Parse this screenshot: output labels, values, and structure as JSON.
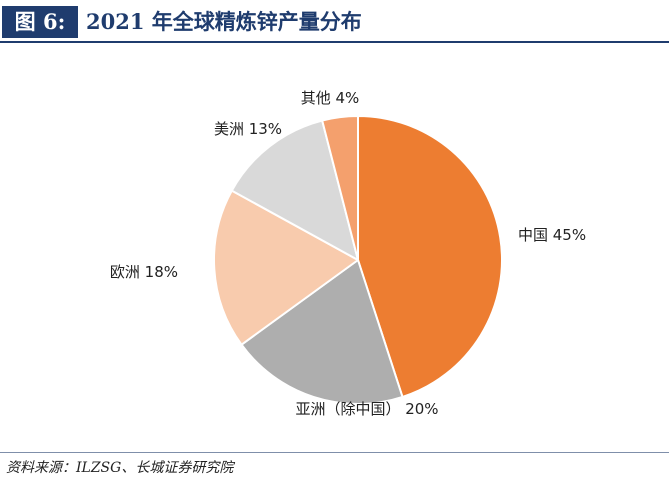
{
  "figure": {
    "label": "图 6:",
    "title": "2021 年全球精炼锌产量分布"
  },
  "source": "资料来源：ILZSG、长城证券研究院",
  "chart_data": {
    "type": "pie",
    "title": "2021 年全球精炼锌产量分布",
    "unit": "%",
    "slices": [
      {
        "name": "中国",
        "value": 45,
        "label": "中国 45%",
        "color": "#ed7d31"
      },
      {
        "name": "亚洲（除中国）",
        "value": 20,
        "label": "亚洲（除中国） 20%",
        "color": "#aeaeae"
      },
      {
        "name": "欧洲",
        "value": 18,
        "label": "欧洲 18%",
        "color": "#f8cbad"
      },
      {
        "name": "美洲",
        "value": 13,
        "label": "美洲 13%",
        "color": "#d9d9d9"
      },
      {
        "name": "其他",
        "value": 4,
        "label": "其他 4%",
        "color": "#f4a06d"
      }
    ],
    "start_angle": "12 o'clock",
    "direction": "clockwise",
    "legend": "none"
  }
}
